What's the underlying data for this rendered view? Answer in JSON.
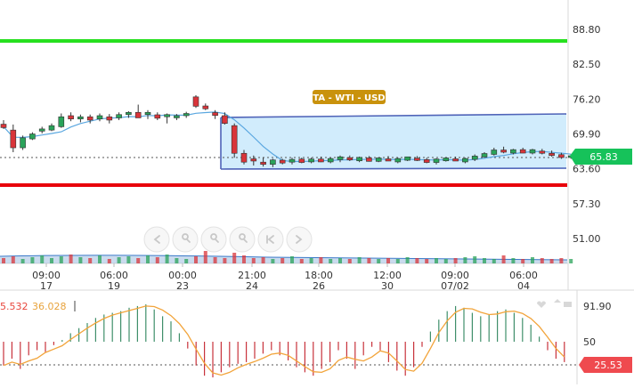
{
  "price_axis": {
    "labels": [
      "88.80",
      "82.50",
      "76.20",
      "69.90",
      "63.60",
      "57.30",
      "51.00"
    ],
    "values": [
      88.8,
      82.5,
      76.2,
      69.9,
      63.6,
      57.3,
      51.0
    ],
    "current_price": "65.83",
    "current_price_color": "#16c25a"
  },
  "time_axis": {
    "labels": [
      {
        "time": "09:00",
        "date": "17"
      },
      {
        "time": "06:00",
        "date": "19"
      },
      {
        "time": "00:00",
        "date": "23"
      },
      {
        "time": "21:00",
        "date": "24"
      },
      {
        "time": "18:00",
        "date": "26"
      },
      {
        "time": "12:00",
        "date": "30"
      },
      {
        "time": "09:00",
        "date": "07/02"
      },
      {
        "time": "06:00",
        "date": "04"
      }
    ]
  },
  "horizontal_lines": [
    {
      "name": "resistance",
      "price": 86.0,
      "color": "#27e01f"
    },
    {
      "name": "support",
      "price": 60.2,
      "color": "#e8000b"
    }
  ],
  "annotation": {
    "label": "TA - WTI - USD",
    "color": "#c9920c"
  },
  "channel": {
    "fill": "#c9e9fb",
    "stroke": "#4f63b8"
  },
  "candle_colors": {
    "up": "#2aa35a",
    "down": "#d9343a"
  },
  "navigation": {
    "buttons": [
      "scroll-left",
      "zoom-in",
      "zoom-reset",
      "zoom-out",
      "jump-start",
      "scroll-right"
    ]
  },
  "oscillator": {
    "value_1": "5.532",
    "value_2": "36.028",
    "value_1_color": "#e8463c",
    "value_2_color": "#e8a33c",
    "axis_labels": [
      "91.90",
      "50"
    ],
    "axis_values": [
      91.9,
      50
    ],
    "current_value": "25.53",
    "current_value_color": "#ef4a4f",
    "line_color": "#f2a43a"
  }
}
